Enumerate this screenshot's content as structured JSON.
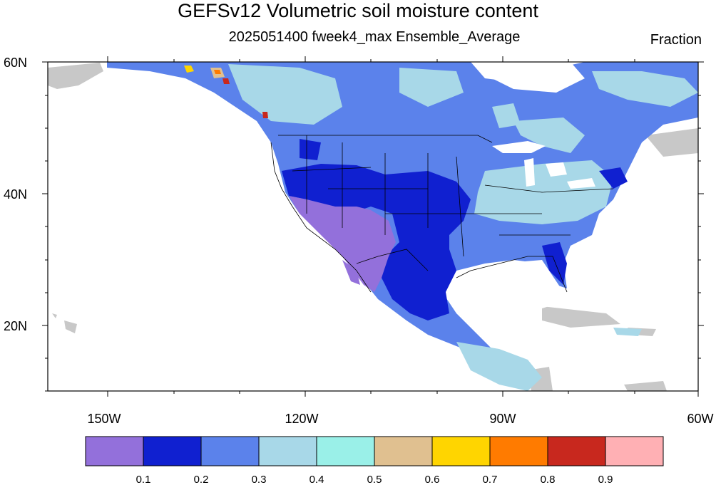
{
  "title": "GEFSv12 Volumetric soil moisture content",
  "subtitle": "2025051400 fweek4_max Ensemble_Average",
  "units": "Fraction",
  "lat_labels": [
    "60N",
    "40N",
    "20N"
  ],
  "lon_labels": [
    "150W",
    "120W",
    "90W",
    "60W"
  ],
  "colorbar": {
    "colors": [
      "#9370db",
      "#1020d0",
      "#5b82eb",
      "#a8d8e8",
      "#9af0e8",
      "#e0c090",
      "#ffd500",
      "#ff7b00",
      "#c8281e",
      "#ffb0b4"
    ],
    "labels": [
      "0.1",
      "0.2",
      "0.3",
      "0.4",
      "0.5",
      "0.6",
      "0.7",
      "0.8",
      "0.9"
    ]
  },
  "colors": {
    "land_missing": "#c8c8c8",
    "water": "#ffffff",
    "outline": "#000000"
  }
}
